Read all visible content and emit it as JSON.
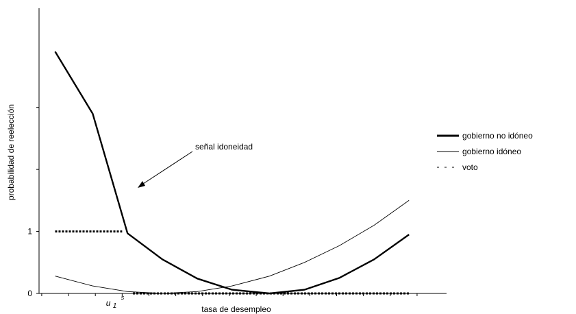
{
  "chart_data": {
    "type": "line",
    "xlabel": "tasa de desempleo",
    "ylabel": "probabilidad de reelección",
    "x_tick_label": {
      "text": "u",
      "sub": "1",
      "sup": "s",
      "x": 2
    },
    "y_ticks": [
      {
        "value": 0,
        "label": "0"
      },
      {
        "value": 1,
        "label": "1"
      },
      {
        "value": 2,
        "label": ""
      },
      {
        "value": 3,
        "label": ""
      }
    ],
    "ylim": [
      0,
      4.6
    ],
    "xlim": [
      -0.6,
      14.6
    ],
    "x": [
      0,
      1,
      2,
      3,
      4,
      5,
      6,
      7,
      8,
      9,
      10,
      11,
      12,
      13
    ],
    "series": [
      {
        "name": "gobierno no idóneo",
        "style": "thick",
        "x": [
          0,
          1.4,
          2.7,
          4,
          5.3,
          6.6,
          8,
          9.3,
          10.6,
          11.9,
          13.2
        ],
        "values": [
          3.9,
          2.9,
          0.97,
          0.55,
          0.24,
          0.06,
          0.0,
          0.06,
          0.25,
          0.55,
          0.95
        ]
      },
      {
        "name": "gobierno idóneo",
        "style": "thin",
        "x": [
          0,
          1.4,
          2.7,
          4,
          5.3,
          6.6,
          8,
          9.3,
          10.6,
          11.9,
          13.2
        ],
        "values": [
          0.28,
          0.12,
          0.03,
          0.0,
          0.03,
          0.12,
          0.28,
          0.5,
          0.77,
          1.1,
          1.5
        ]
      },
      {
        "name": "voto",
        "style": "dashed",
        "segments": [
          {
            "x": [
              0,
              2.5
            ],
            "values": [
              1.0,
              1.0
            ]
          },
          {
            "x": [
              2.9,
              13.2
            ],
            "values": [
              0.0,
              0.0
            ]
          }
        ]
      }
    ],
    "annotations": [
      {
        "text": "señal idoneidad",
        "arrow_to_x": 2.8,
        "arrow_to_y": 1.02
      }
    ],
    "legend_placement": "right",
    "grid": false
  }
}
